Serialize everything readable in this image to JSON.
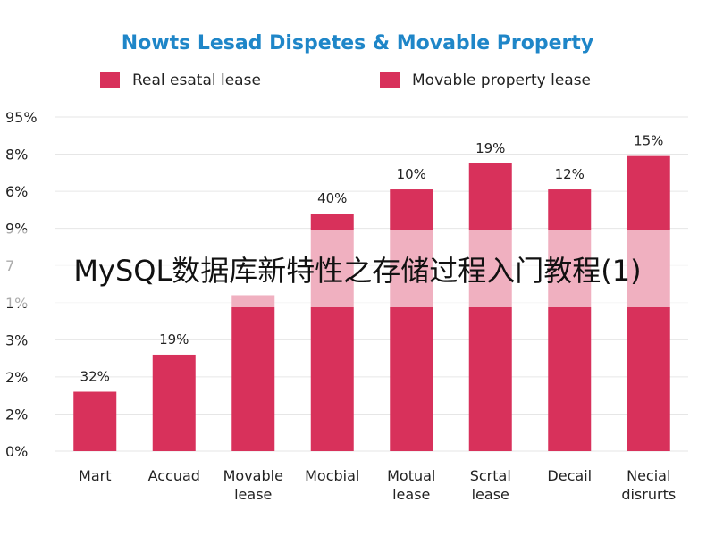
{
  "colors": {
    "title": "#1f86c8",
    "bar": "#d8315b",
    "grid": "#e6e6e6"
  },
  "watermark_text": "MySQL数据库新特性之存储过程入门教程(1)",
  "chart_data": {
    "type": "bar",
    "title": "Nowts Lesad Dispetes & Movable Property",
    "legend": [
      {
        "name": "Real esatal lease",
        "color": "#d8315b"
      },
      {
        "name": "Movable property lease",
        "color": "#d8315b"
      }
    ],
    "legend_position": "top",
    "grid": true,
    "y_tick_labels": [
      "0%",
      "2%",
      "2%",
      "3%",
      "1%",
      "7",
      "9%",
      "6%",
      "8%",
      "95%"
    ],
    "categories": [
      [
        "Mart"
      ],
      [
        "Accuad"
      ],
      [
        "Movable",
        "lease"
      ],
      [
        "Mocbial"
      ],
      [
        "Motual",
        "lease"
      ],
      [
        "Scrtal",
        "lease"
      ],
      [
        "Decail"
      ],
      [
        "Necial",
        "disrurts"
      ]
    ],
    "values": [
      1.6,
      2.6,
      4.2,
      6.4,
      7.05,
      7.75,
      7.05,
      7.95
    ],
    "data_labels": [
      "32%",
      "19%",
      "",
      "40%",
      "10%",
      "19%",
      "12%",
      "15%"
    ],
    "ylim": [
      0,
      9
    ]
  }
}
